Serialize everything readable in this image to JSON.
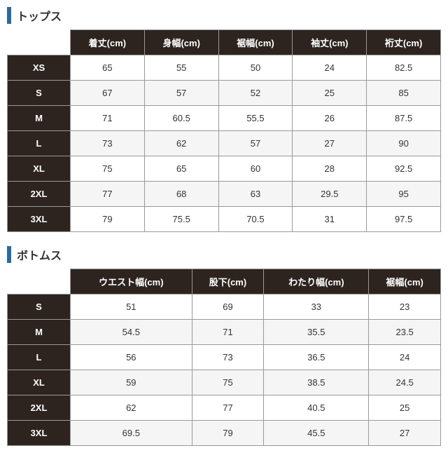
{
  "colors": {
    "accent_border": "#2b6a9c",
    "header_bg": "#2d2420",
    "header_fg": "#ffffff",
    "cell_bg": "#ffffff",
    "cell_bg_alt": "#f5f5f5",
    "cell_fg": "#333333",
    "border": "#999999"
  },
  "tops": {
    "title": "トップス",
    "type": "table",
    "columns": [
      "着丈(cm)",
      "身幅(cm)",
      "裾幅(cm)",
      "袖丈(cm)",
      "裄丈(cm)"
    ],
    "row_headers": [
      "XS",
      "S",
      "M",
      "L",
      "XL",
      "2XL",
      "3XL"
    ],
    "rows": [
      [
        "65",
        "55",
        "50",
        "24",
        "82.5"
      ],
      [
        "67",
        "57",
        "52",
        "25",
        "85"
      ],
      [
        "71",
        "60.5",
        "55.5",
        "26",
        "87.5"
      ],
      [
        "73",
        "62",
        "57",
        "27",
        "90"
      ],
      [
        "75",
        "65",
        "60",
        "28",
        "92.5"
      ],
      [
        "77",
        "68",
        "63",
        "29.5",
        "95"
      ],
      [
        "79",
        "75.5",
        "70.5",
        "31",
        "97.5"
      ]
    ]
  },
  "bottoms": {
    "title": "ボトムス",
    "type": "table",
    "columns": [
      "ウエスト幅(cm)",
      "股下(cm)",
      "わたり幅(cm)",
      "裾幅(cm)"
    ],
    "row_headers": [
      "S",
      "M",
      "L",
      "XL",
      "2XL",
      "3XL"
    ],
    "rows": [
      [
        "51",
        "69",
        "33",
        "23"
      ],
      [
        "54.5",
        "71",
        "35.5",
        "23.5"
      ],
      [
        "56",
        "73",
        "36.5",
        "24"
      ],
      [
        "59",
        "75",
        "38.5",
        "24.5"
      ],
      [
        "62",
        "77",
        "40.5",
        "25"
      ],
      [
        "69.5",
        "79",
        "45.5",
        "27"
      ]
    ]
  }
}
